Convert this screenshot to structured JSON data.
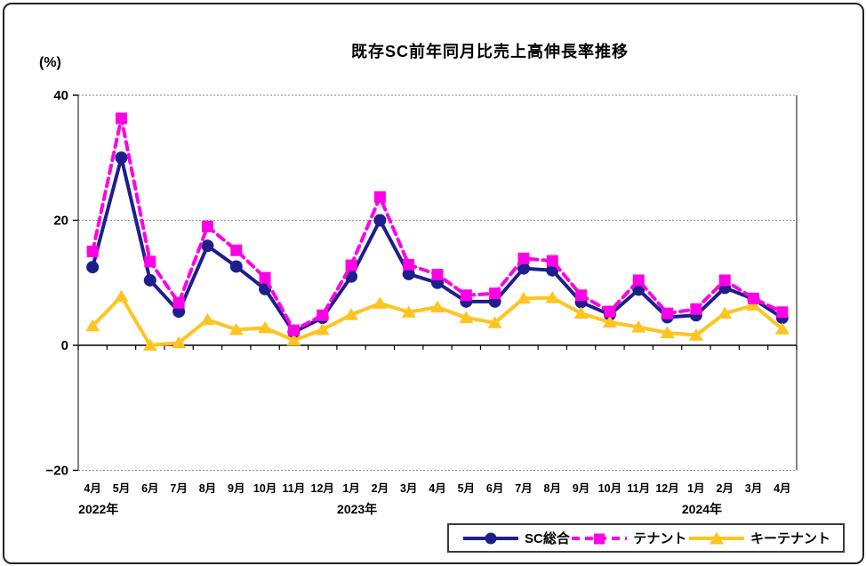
{
  "title": "既存SC前年同月比売上高伸長率推移",
  "y_axis_unit": "(%)",
  "chart_data": {
    "type": "line",
    "title": "既存SC前年同月比売上高伸長率推移",
    "ylabel": "(%)",
    "xlabel": "",
    "ylim": [
      -20,
      40
    ],
    "grid": true,
    "legend_position": "bottom",
    "yticks": [
      {
        "value": 40,
        "label": "40"
      },
      {
        "value": 20,
        "label": "20"
      },
      {
        "value": 0,
        "label": "0"
      },
      {
        "value": -20,
        "label": "−20"
      }
    ],
    "categories": [
      "4月",
      "5月",
      "6月",
      "7月",
      "8月",
      "9月",
      "10月",
      "11月",
      "12月",
      "1月",
      "2月",
      "3月",
      "4月",
      "5月",
      "6月",
      "7月",
      "8月",
      "9月",
      "10月",
      "11月",
      "12月",
      "1月",
      "2月",
      "3月",
      "4月"
    ],
    "year_labels": [
      {
        "label": "2022年",
        "index": 0
      },
      {
        "label": "2023年",
        "index": 9
      },
      {
        "label": "2024年",
        "index": 21
      }
    ],
    "series": [
      {
        "name": "SC総合",
        "color": "#1E1E8C",
        "marker": "circle",
        "line": "solid",
        "values": [
          12.5,
          30.0,
          10.4,
          5.4,
          15.9,
          12.6,
          9.0,
          2.1,
          4.4,
          11.0,
          20.0,
          11.4,
          10.0,
          7.0,
          7.0,
          12.3,
          12.0,
          6.9,
          4.9,
          8.9,
          4.5,
          4.8,
          9.2,
          7.4,
          4.4
        ]
      },
      {
        "name": "テナント",
        "color": "#FF00E6",
        "marker": "square",
        "line": "dashed",
        "values": [
          15.0,
          36.3,
          13.4,
          6.8,
          19.0,
          15.2,
          10.8,
          2.4,
          4.8,
          12.8,
          23.7,
          12.9,
          11.3,
          8.0,
          8.3,
          13.9,
          13.5,
          8.0,
          5.4,
          10.4,
          5.1,
          5.8,
          10.4,
          7.5,
          5.3
        ]
      },
      {
        "name": "キーテナント",
        "color": "#FFC41E",
        "marker": "triangle",
        "line": "solid",
        "values": [
          3.1,
          7.8,
          0.0,
          0.4,
          4.1,
          2.5,
          2.8,
          0.8,
          2.5,
          4.9,
          6.7,
          5.3,
          6.1,
          4.4,
          3.6,
          7.5,
          7.6,
          5.1,
          3.7,
          2.9,
          2.0,
          1.6,
          5.1,
          6.4,
          2.6
        ]
      }
    ]
  }
}
